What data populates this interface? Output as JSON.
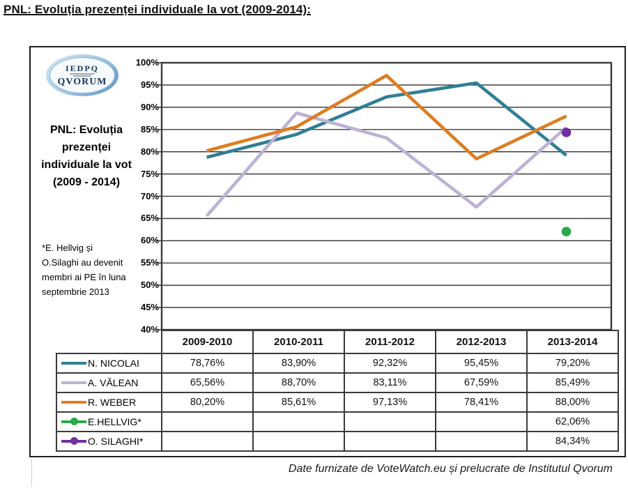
{
  "page": {
    "title": "PNL: Evoluția prezenței individuale la vot (2009-2014):",
    "footer": "Date furnizate de VoteWatch.eu și prelucrate de Institutul Qvorum"
  },
  "logo": {
    "top_text": "IEDPQ",
    "bottom_text": "QVORUM"
  },
  "chart_label": "PNL: Evoluția prezenței individuale la vot (2009 - 2014)",
  "note": "*E. Hellvig și O.Silaghi au devenit membri ai PE în luna septembrie 2013",
  "y_ticks": [
    "100%",
    "95%",
    "90%",
    "85%",
    "80%",
    "75%",
    "70%",
    "65%",
    "60%",
    "55%",
    "50%",
    "45%",
    "40%"
  ],
  "chart_data": {
    "type": "line",
    "categories": [
      "2009-2010",
      "2010-2011",
      "2011-2012",
      "2012-2013",
      "2013-2014"
    ],
    "series": [
      {
        "name": "N. NICOLAI",
        "color": "#2F7F95",
        "marker": "none",
        "values": [
          78.76,
          83.9,
          92.32,
          95.45,
          79.2
        ]
      },
      {
        "name": "A. VĂLEAN",
        "color": "#BDB2D4",
        "marker": "none",
        "values": [
          65.56,
          88.7,
          83.11,
          67.59,
          85.49
        ]
      },
      {
        "name": "R. WEBER",
        "color": "#DE7D22",
        "marker": "none",
        "values": [
          80.2,
          85.61,
          97.13,
          78.41,
          88.0
        ]
      },
      {
        "name": "E.HELLVIG*",
        "color": "#2AA84B",
        "marker": "circle",
        "values": [
          null,
          null,
          null,
          null,
          62.06
        ]
      },
      {
        "name": "O. SILAGHI*",
        "color": "#7030A0",
        "marker": "circle",
        "values": [
          null,
          null,
          null,
          null,
          84.34
        ]
      }
    ],
    "ylim": [
      40,
      100
    ],
    "ytick_step": 5,
    "grid": true,
    "legend_position": "table-left",
    "title": "PNL: Evoluția prezenței individuale la vot (2009 - 2014)"
  },
  "table": {
    "categories": [
      "2009-2010",
      "2010-2011",
      "2011-2012",
      "2012-2013",
      "2013-2014"
    ],
    "rows": [
      {
        "label": "N. NICOLAI",
        "values": [
          "78,76%",
          "83,90%",
          "92,32%",
          "95,45%",
          "79,20%"
        ]
      },
      {
        "label": "A. VĂLEAN",
        "values": [
          "65,56%",
          "88,70%",
          "83,11%",
          "67,59%",
          "85,49%"
        ]
      },
      {
        "label": "R. WEBER",
        "values": [
          "80,20%",
          "85,61%",
          "97,13%",
          "78,41%",
          "88,00%"
        ]
      },
      {
        "label": "E.HELLVIG*",
        "values": [
          "",
          "",
          "",
          "",
          "62,06%"
        ]
      },
      {
        "label": "O. SILAGHI*",
        "values": [
          "",
          "",
          "",
          "",
          "84,34%"
        ]
      }
    ]
  }
}
